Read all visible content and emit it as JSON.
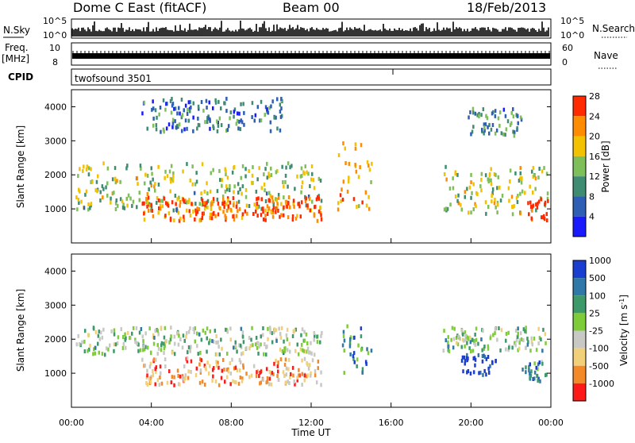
{
  "header": {
    "station": "Dome C East (fitACF)",
    "beam": "Beam 00",
    "date": "18/Feb/2013"
  },
  "strips": {
    "nsky_label": "N.Sky",
    "nsearch_label": "N.Search",
    "nave_label": "Nave",
    "freq_label": "Freq.",
    "freq_unit": "[MHz]",
    "cpid_label": "CPID",
    "cpid_value": "twofsound 3501",
    "noise_ticks": [
      "10^5",
      "10^0"
    ],
    "noise_right_ticks": [
      "10^5",
      "10^0"
    ],
    "freq_ticks": [
      "10",
      "8"
    ],
    "nave_ticks": [
      "60",
      "0"
    ]
  },
  "chart_data": [
    {
      "type": "heatmap",
      "panel": "power",
      "ylabel": "Slant Range [km]",
      "yticks": [
        "1000",
        "2000",
        "3000",
        "4000"
      ],
      "colorbar_label": "Power [dB]",
      "colorbar_ticks": [
        "4",
        "8",
        "12",
        "16",
        "20",
        "24",
        "28"
      ],
      "colorbar_colors": [
        "#1a1aff",
        "#2e5fb4",
        "#3f8c72",
        "#7fbf5a",
        "#f2c200",
        "#ff8c00",
        "#ff2a00"
      ],
      "ylim": [
        0,
        4500
      ],
      "regions": [
        {
          "t0": 0.2,
          "t1": 12.5,
          "r0": 1000,
          "r1": 2400,
          "level": 0.5
        },
        {
          "t0": 3.5,
          "t1": 12.5,
          "r0": 700,
          "r1": 1400,
          "level": 0.85
        },
        {
          "t0": 13.3,
          "t1": 15.0,
          "r0": 1000,
          "r1": 3000,
          "level": 0.7
        },
        {
          "t0": 18.6,
          "t1": 23.8,
          "r0": 900,
          "r1": 2300,
          "level": 0.55
        },
        {
          "t0": 22.8,
          "t1": 23.9,
          "r0": 700,
          "r1": 1400,
          "level": 0.95
        },
        {
          "t0": 3.5,
          "t1": 10.5,
          "r0": 3300,
          "r1": 4300,
          "level": 0.3
        },
        {
          "t0": 19.8,
          "t1": 22.5,
          "r0": 3200,
          "r1": 4000,
          "level": 0.35
        }
      ]
    },
    {
      "type": "heatmap",
      "panel": "velocity",
      "ylabel": "Slant Range [km]",
      "xlabel": "Time UT",
      "yticks": [
        "1000",
        "2000",
        "3000",
        "4000"
      ],
      "xticks": [
        "00:00",
        "04:00",
        "08:00",
        "12:00",
        "16:00",
        "20:00",
        "00:00"
      ],
      "colorbar_label": "Velocity [m s",
      "colorbar_unit_sup": "-1",
      "colorbar_ticks": [
        "1000",
        "500",
        "100",
        "25",
        "-25",
        "-100",
        "-500",
        "-1000"
      ],
      "colorbar_colors": [
        "#1a3fd0",
        "#2f78a8",
        "#3c9a6a",
        "#7fcc3a",
        "#c8c8c4",
        "#f2d07a",
        "#f28a2a",
        "#ff1a1a"
      ],
      "ylim": [
        0,
        4500
      ],
      "xlim": [
        0,
        24
      ],
      "regions": [
        {
          "t0": 0.2,
          "t1": 12.5,
          "r0": 1600,
          "r1": 2400,
          "level": 0.55
        },
        {
          "t0": 3.5,
          "t1": 12.5,
          "r0": 700,
          "r1": 1500,
          "level": 0.25
        },
        {
          "t0": 13.5,
          "t1": 15.0,
          "r0": 1000,
          "r1": 2500,
          "level": 0.75
        },
        {
          "t0": 19.5,
          "t1": 21.2,
          "r0": 1000,
          "r1": 1600,
          "level": 1.0
        },
        {
          "t0": 18.5,
          "t1": 23.8,
          "r0": 1700,
          "r1": 2400,
          "level": 0.55
        },
        {
          "t0": 22.5,
          "t1": 23.8,
          "r0": 700,
          "r1": 1400,
          "level": 0.7
        }
      ]
    }
  ]
}
